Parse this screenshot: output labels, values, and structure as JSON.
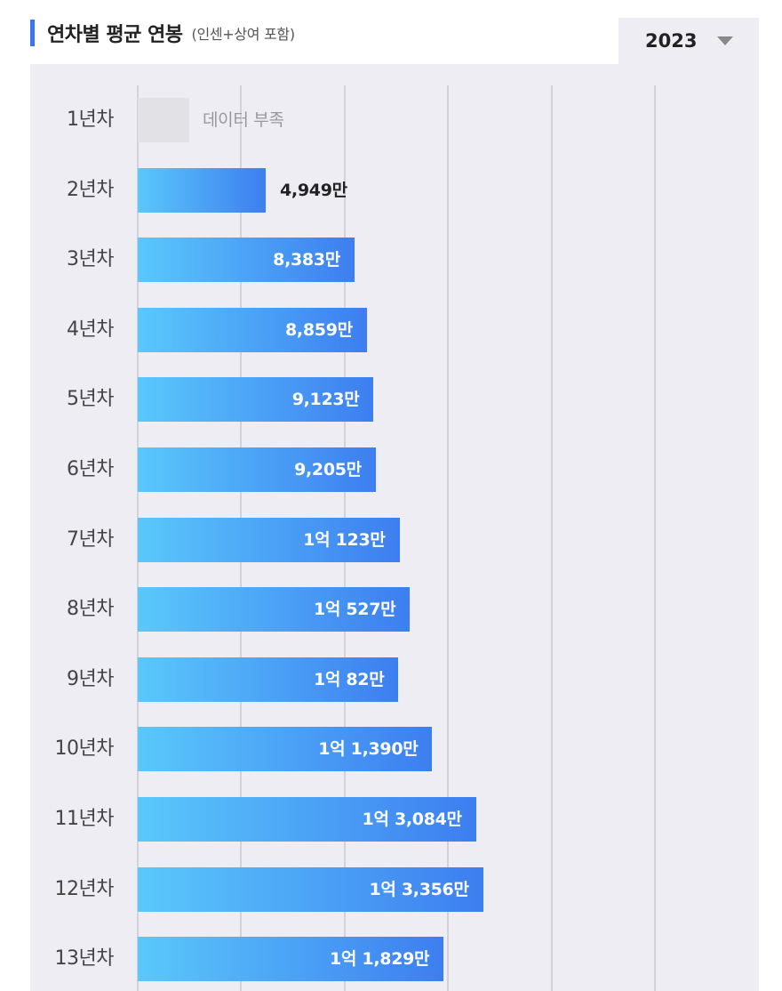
{
  "header": {
    "title": "연차별 평균 연봉",
    "subtitle": "(인센+상여 포함)"
  },
  "year_select": {
    "value": "2023"
  },
  "colors": {
    "accent": "#3b73f0",
    "bar_start": "#5ac8fb",
    "bar_end": "#3d7ef0",
    "panel_bg": "#eeedf3",
    "no_data": "#e2e2e6"
  },
  "chart_data": {
    "type": "bar",
    "orientation": "horizontal",
    "categories": [
      "1년차",
      "2년차",
      "3년차",
      "4년차",
      "5년차",
      "6년차",
      "7년차",
      "8년차",
      "9년차",
      "10년차",
      "11년차",
      "12년차",
      "13년차"
    ],
    "values": [
      null,
      4949,
      8383,
      8859,
      9123,
      9205,
      10123,
      10527,
      10082,
      11390,
      13084,
      13356,
      11829
    ],
    "value_labels": [
      "데이터 부족",
      "4,949만",
      "8,383만",
      "8,859만",
      "9,123만",
      "9,205만",
      "1억 123만",
      "1억 527만",
      "1억 82만",
      "1억 1,390만",
      "1억 3,084만",
      "1억 3,356만",
      "1억 1,829만"
    ],
    "unit": "만원",
    "xlim": [
      0,
      20000
    ],
    "grid": true,
    "grid_step": 4000
  }
}
